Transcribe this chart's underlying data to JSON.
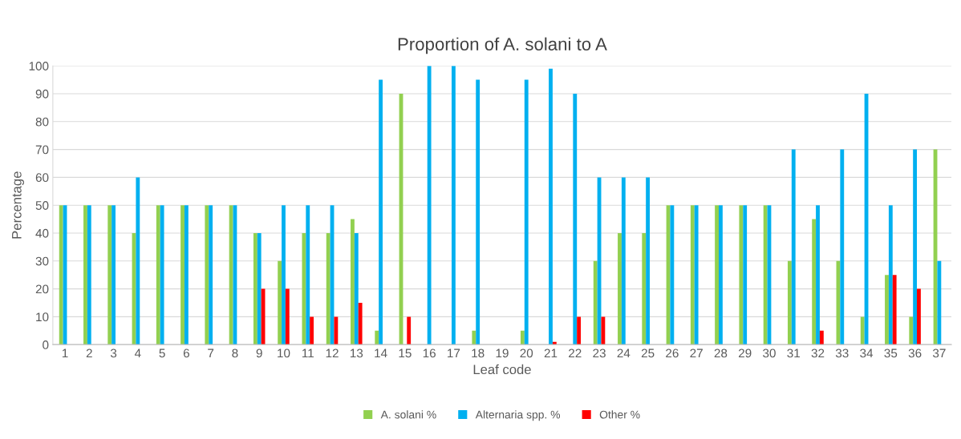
{
  "chart_data": {
    "type": "bar",
    "title": "Proportion of A. solani to A",
    "xlabel": "Leaf code",
    "ylabel": "Percentage",
    "categories": [
      "1",
      "2",
      "3",
      "4",
      "5",
      "6",
      "7",
      "8",
      "9",
      "10",
      "11",
      "12",
      "13",
      "14",
      "15",
      "16",
      "17",
      "18",
      "19",
      "20",
      "21",
      "22",
      "23",
      "24",
      "25",
      "26",
      "27",
      "28",
      "29",
      "30",
      "31",
      "32",
      "33",
      "34",
      "35",
      "36",
      "37"
    ],
    "series": [
      {
        "name": "A. solani %",
        "color": "#92d050",
        "values": [
          50,
          50,
          50,
          40,
          50,
          50,
          50,
          50,
          40,
          30,
          40,
          40,
          45,
          5,
          90,
          0,
          0,
          5,
          0,
          5,
          0,
          0,
          30,
          40,
          40,
          50,
          50,
          50,
          50,
          50,
          30,
          45,
          30,
          10,
          25,
          10,
          70
        ]
      },
      {
        "name": "Alternaria spp. %",
        "color": "#00b0f0",
        "values": [
          50,
          50,
          50,
          60,
          50,
          50,
          50,
          50,
          40,
          50,
          50,
          50,
          40,
          95,
          0,
          100,
          100,
          95,
          0,
          95,
          99,
          90,
          60,
          60,
          60,
          50,
          50,
          50,
          50,
          50,
          70,
          50,
          70,
          90,
          50,
          70,
          30
        ]
      },
      {
        "name": "Other %",
        "color": "#ff0000",
        "values": [
          0,
          0,
          0,
          0,
          0,
          0,
          0,
          0,
          20,
          20,
          10,
          10,
          15,
          0,
          10,
          0,
          0,
          0,
          0,
          0,
          1,
          10,
          10,
          0,
          0,
          0,
          0,
          0,
          0,
          0,
          0,
          5,
          0,
          0,
          25,
          20,
          0
        ]
      }
    ],
    "ylim": [
      0,
      100
    ],
    "yticks": [
      0,
      10,
      20,
      30,
      40,
      50,
      60,
      70,
      80,
      90,
      100
    ],
    "grid": "y",
    "legend": "bottom"
  }
}
